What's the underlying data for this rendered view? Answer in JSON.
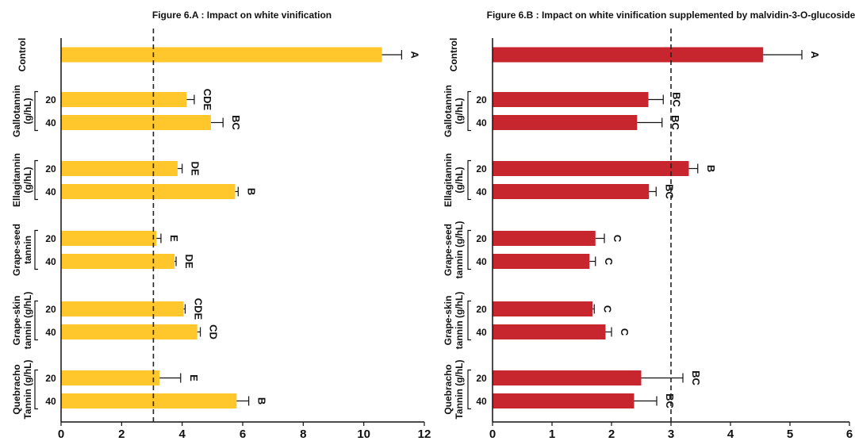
{
  "chart_data": [
    {
      "type": "bar",
      "orientation": "horizontal",
      "title": "Figure 6.A : Impact on white vinification",
      "color": "#FFC72C",
      "xlim": [
        0,
        12
      ],
      "xticks": [
        0,
        2,
        4,
        6,
        8,
        10,
        12
      ],
      "reference_line": 3.05,
      "groups": [
        {
          "label_lines": [
            "Control"
          ],
          "bars": [
            {
              "dose": "",
              "value": 10.6,
              "error": 0.65,
              "sig": "A"
            }
          ]
        },
        {
          "label_lines": [
            "Gallotannin",
            "(g/hL)"
          ],
          "bars": [
            {
              "dose": "20",
              "value": 4.15,
              "error": 0.25,
              "sig": "CDE"
            },
            {
              "dose": "40",
              "value": 4.95,
              "error": 0.4,
              "sig": "BC"
            }
          ]
        },
        {
          "label_lines": [
            "Ellagitannin",
            "(g/hL)"
          ],
          "bars": [
            {
              "dose": "20",
              "value": 3.85,
              "error": 0.15,
              "sig": "DE"
            },
            {
              "dose": "40",
              "value": 5.75,
              "error": 0.1,
              "sig": "B"
            }
          ]
        },
        {
          "label_lines": [
            "Grape-seed",
            "tannin"
          ],
          "bars": [
            {
              "dose": "20",
              "value": 3.15,
              "error": 0.15,
              "sig": "E"
            },
            {
              "dose": "40",
              "value": 3.75,
              "error": 0.05,
              "sig": "DE"
            }
          ]
        },
        {
          "label_lines": [
            "Grape-skin",
            "tannin (g/hL)"
          ],
          "bars": [
            {
              "dose": "20",
              "value": 4.05,
              "error": 0.05,
              "sig": "CDE"
            },
            {
              "dose": "40",
              "value": 4.5,
              "error": 0.1,
              "sig": "CD"
            }
          ]
        },
        {
          "label_lines": [
            "Quebracho",
            "Tannin (g/hL)"
          ],
          "bars": [
            {
              "dose": "20",
              "value": 3.25,
              "error": 0.7,
              "sig": "E"
            },
            {
              "dose": "40",
              "value": 5.8,
              "error": 0.4,
              "sig": "B"
            }
          ]
        }
      ]
    },
    {
      "type": "bar",
      "orientation": "horizontal",
      "title": "Figure 6.B : Impact on white vinification supplemented by malvidin-3-O-glucoside",
      "color": "#C7262E",
      "xlim": [
        0,
        6
      ],
      "xticks": [
        0,
        1,
        2,
        3,
        4,
        5,
        6
      ],
      "reference_line": 3.0,
      "groups": [
        {
          "label_lines": [
            "Control"
          ],
          "bars": [
            {
              "dose": "",
              "value": 4.55,
              "error": 0.65,
              "sig": "A"
            }
          ]
        },
        {
          "label_lines": [
            "Gallotannin",
            "(g/hL)"
          ],
          "bars": [
            {
              "dose": "20",
              "value": 2.62,
              "error": 0.25,
              "sig": "BC"
            },
            {
              "dose": "40",
              "value": 2.43,
              "error": 0.42,
              "sig": "BC"
            }
          ]
        },
        {
          "label_lines": [
            "Ellagitannin",
            "(g/hL)"
          ],
          "bars": [
            {
              "dose": "20",
              "value": 3.3,
              "error": 0.15,
              "sig": "B"
            },
            {
              "dose": "40",
              "value": 2.63,
              "error": 0.12,
              "sig": "BC"
            }
          ]
        },
        {
          "label_lines": [
            "Grape-seed",
            "tannin (g/hL)"
          ],
          "bars": [
            {
              "dose": "20",
              "value": 1.73,
              "error": 0.15,
              "sig": "C"
            },
            {
              "dose": "40",
              "value": 1.63,
              "error": 0.1,
              "sig": "C"
            }
          ]
        },
        {
          "label_lines": [
            "Grape-skin",
            "tannin (g/hL)"
          ],
          "bars": [
            {
              "dose": "20",
              "value": 1.68,
              "error": 0.03,
              "sig": "C"
            },
            {
              "dose": "40",
              "value": 1.9,
              "error": 0.1,
              "sig": "C"
            }
          ]
        },
        {
          "label_lines": [
            "Quebracho",
            "Tannin (g/hL)"
          ],
          "bars": [
            {
              "dose": "20",
              "value": 2.5,
              "error": 0.7,
              "sig": "BC"
            },
            {
              "dose": "40",
              "value": 2.38,
              "error": 0.38,
              "sig": "BC"
            }
          ]
        }
      ]
    }
  ]
}
